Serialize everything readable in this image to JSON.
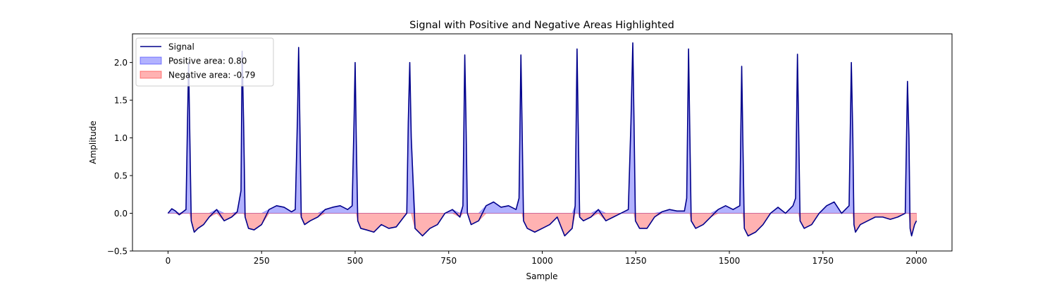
{
  "chart_data": {
    "type": "line",
    "title": "Signal with Positive and Negative Areas Highlighted",
    "xlabel": "Sample",
    "ylabel": "Amplitude",
    "xlim": [
      -95,
      2095
    ],
    "ylim": [
      -0.5,
      2.38
    ],
    "xticks": [
      0,
      250,
      500,
      750,
      1000,
      1250,
      1500,
      1750,
      2000
    ],
    "yticks": [
      -0.5,
      0.0,
      0.5,
      1.0,
      1.5,
      2.0
    ],
    "xtick_labels": [
      "0",
      "250",
      "500",
      "750",
      "1000",
      "1250",
      "1500",
      "1750",
      "2000"
    ],
    "ytick_labels": [
      "−0.5",
      "0.0",
      "0.5",
      "1.0",
      "1.5",
      "2.0"
    ],
    "grid": false,
    "legend_position": "top-left",
    "colors": {
      "signal": "#00008b",
      "positive_fill": "#0000ff",
      "negative_fill": "#ff0000",
      "fill_alpha": 0.3
    },
    "legend": [
      {
        "label": "Signal",
        "kind": "line",
        "color": "#00008b"
      },
      {
        "label": "Positive area: 0.80",
        "kind": "patch",
        "color": "#0000ff"
      },
      {
        "label": "Negative area: -0.79",
        "kind": "patch",
        "color": "#ff0000"
      }
    ],
    "series": [
      {
        "name": "Signal",
        "x": [
          0,
          10,
          20,
          30,
          40,
          48,
          52,
          55,
          58,
          62,
          70,
          80,
          95,
          110,
          130,
          150,
          170,
          185,
          195,
          198,
          202,
          206,
          215,
          230,
          250,
          270,
          290,
          310,
          330,
          340,
          346,
          349,
          352,
          356,
          365,
          380,
          400,
          420,
          440,
          460,
          480,
          492,
          497,
          500,
          503,
          507,
          515,
          530,
          550,
          570,
          590,
          610,
          630,
          638,
          642,
          646,
          650,
          660,
          680,
          700,
          720,
          740,
          760,
          780,
          788,
          793,
          796,
          800,
          810,
          830,
          850,
          870,
          890,
          910,
          930,
          938,
          943,
          946,
          950,
          960,
          980,
          1000,
          1020,
          1040,
          1060,
          1080,
          1088,
          1093,
          1096,
          1100,
          1110,
          1130,
          1150,
          1170,
          1190,
          1210,
          1230,
          1237,
          1242,
          1245,
          1249,
          1260,
          1280,
          1300,
          1320,
          1340,
          1360,
          1380,
          1386,
          1391,
          1394,
          1398,
          1410,
          1430,
          1450,
          1470,
          1490,
          1510,
          1528,
          1533,
          1536,
          1540,
          1550,
          1570,
          1590,
          1610,
          1630,
          1650,
          1670,
          1677,
          1682,
          1685,
          1689,
          1700,
          1720,
          1740,
          1760,
          1780,
          1800,
          1820,
          1826,
          1830,
          1833,
          1837,
          1850,
          1870,
          1890,
          1910,
          1930,
          1950,
          1970,
          1976,
          1980,
          1983,
          1987,
          1995,
          2000
        ],
        "y": [
          0.0,
          0.06,
          0.03,
          -0.02,
          0.02,
          0.05,
          1.2,
          2.0,
          1.1,
          -0.1,
          -0.25,
          -0.2,
          -0.15,
          -0.05,
          0.05,
          -0.1,
          -0.05,
          0.02,
          0.3,
          2.15,
          1.2,
          -0.05,
          -0.2,
          -0.22,
          -0.15,
          0.05,
          0.1,
          0.08,
          0.02,
          0.05,
          1.3,
          2.2,
          1.3,
          -0.05,
          -0.15,
          -0.1,
          -0.05,
          0.05,
          0.08,
          0.1,
          0.05,
          0.1,
          1.2,
          2.0,
          1.0,
          -0.1,
          -0.2,
          -0.22,
          -0.25,
          -0.15,
          -0.2,
          -0.18,
          -0.05,
          0.0,
          1.2,
          2.0,
          1.0,
          -0.2,
          -0.3,
          -0.2,
          -0.15,
          0.0,
          0.05,
          -0.05,
          0.1,
          2.1,
          1.3,
          0.0,
          -0.15,
          -0.1,
          0.1,
          0.15,
          0.08,
          0.1,
          0.05,
          0.2,
          2.1,
          1.2,
          -0.1,
          -0.2,
          -0.25,
          -0.2,
          -0.15,
          -0.05,
          -0.3,
          -0.2,
          0.1,
          2.18,
          1.2,
          -0.05,
          -0.1,
          -0.05,
          0.05,
          -0.1,
          -0.05,
          0.0,
          0.05,
          1.2,
          2.26,
          1.3,
          -0.1,
          -0.2,
          -0.2,
          -0.05,
          0.02,
          0.05,
          0.03,
          0.03,
          0.2,
          2.18,
          1.2,
          -0.1,
          -0.2,
          -0.15,
          -0.05,
          0.05,
          0.1,
          0.05,
          0.1,
          1.95,
          1.0,
          -0.2,
          -0.3,
          -0.25,
          -0.15,
          0.0,
          0.08,
          0.0,
          0.1,
          0.2,
          2.11,
          1.2,
          -0.1,
          -0.2,
          -0.15,
          0.0,
          0.1,
          0.15,
          0.0,
          0.1,
          2.0,
          1.0,
          -0.15,
          -0.25,
          -0.15,
          -0.1,
          -0.05,
          -0.05,
          -0.08,
          -0.05,
          0.0,
          1.75,
          1.0,
          -0.2,
          -0.3,
          -0.15,
          -0.1
        ]
      }
    ]
  }
}
